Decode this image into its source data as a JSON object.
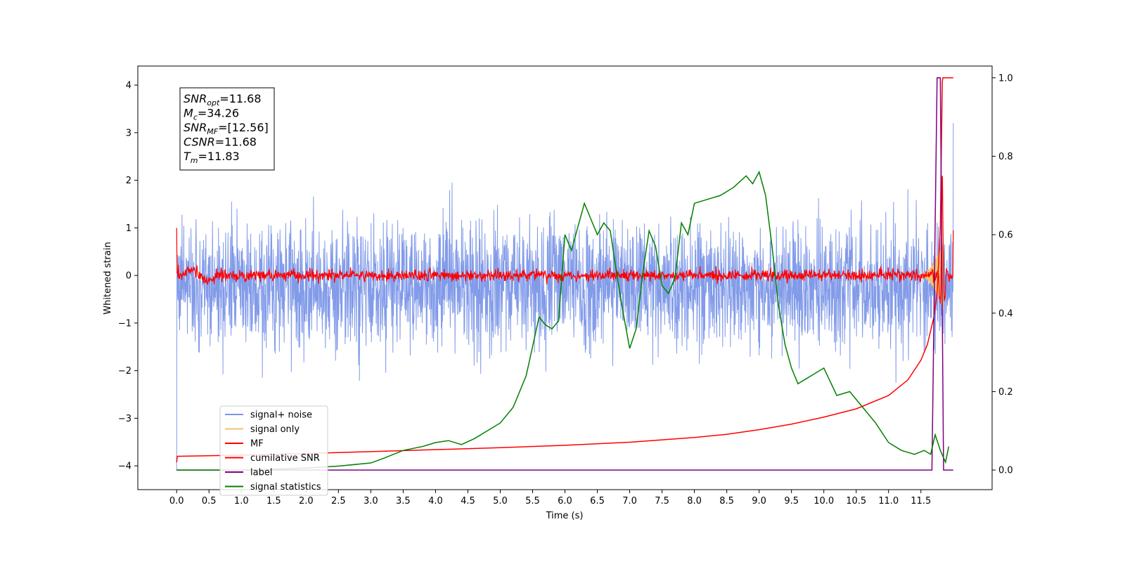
{
  "chart_data": {
    "type": "line",
    "title": "",
    "xlabel": "Time (s)",
    "ylabel": "Whitened strain",
    "xlim": [
      -0.6,
      12.6
    ],
    "ylim": [
      -4.5,
      4.4
    ],
    "y2lim": [
      -0.05,
      1.03
    ],
    "x_ticks": [
      0.0,
      0.5,
      1.0,
      1.5,
      2.0,
      2.5,
      3.0,
      3.5,
      4.0,
      4.5,
      5.0,
      5.5,
      6.0,
      6.5,
      7.0,
      7.5,
      8.0,
      8.5,
      9.0,
      9.5,
      10.0,
      10.5,
      11.0,
      11.5
    ],
    "x_tick_labels": [
      "0.0",
      "0.5",
      "1.0",
      "1.5",
      "2.0",
      "2.5",
      "3.0",
      "3.5",
      "4.0",
      "4.5",
      "5.0",
      "5.5",
      "6.0",
      "6.5",
      "7.0",
      "7.5",
      "8.0",
      "8.5",
      "9.0",
      "9.5",
      "10.0",
      "10.5",
      "11.0",
      "11.5"
    ],
    "y_ticks": [
      -4,
      -3,
      -2,
      -1,
      0,
      1,
      2,
      3,
      4
    ],
    "y_tick_labels": [
      "−4",
      "−3",
      "−2",
      "−1",
      "0",
      "1",
      "2",
      "3",
      "4"
    ],
    "y2_ticks": [
      0.0,
      0.2,
      0.4,
      0.6,
      0.8,
      1.0
    ],
    "y2_tick_labels": [
      "0.0",
      "0.2",
      "0.4",
      "0.6",
      "0.8",
      "1.0"
    ],
    "grid": false,
    "legend_position": "lower-left",
    "annotation": {
      "lines": [
        {
          "sym": "SNR",
          "sub": "opt",
          "value": "=11.68"
        },
        {
          "sym": "M",
          "sub": "c",
          "value": "=34.26"
        },
        {
          "sym": "SNR",
          "sub": "MF",
          "value": "=[12.56]"
        },
        {
          "sym": "CSNR",
          "sub": "",
          "value": "=11.68"
        },
        {
          "sym": "T",
          "sub": "m",
          "value": "=11.83"
        }
      ]
    },
    "series": [
      {
        "name": "signal+ noise",
        "axis": "left",
        "color": "#7b96e8",
        "kind": "noise",
        "x_range": [
          0.0,
          12.0
        ],
        "mean": -0.2,
        "spread": 0.75,
        "amplitude_max": 2.3,
        "end_values": [
          -4.1,
          3.2
        ]
      },
      {
        "name": "signal only",
        "axis": "left",
        "color": "#f2c46e",
        "kind": "chirp",
        "x_range": [
          11.4,
          11.85
        ],
        "envelope_peak": 0.75
      },
      {
        "name": "MF",
        "axis": "left",
        "color": "#ff0000",
        "kind": "noise",
        "x_range": [
          0.0,
          12.0
        ],
        "mean": 0.0,
        "spread": 0.1,
        "start_value": 1.0,
        "end_value": 0.95,
        "peak": {
          "x": 11.83,
          "value": 2.4
        }
      },
      {
        "name": "cumilative SNR",
        "axis": "right",
        "color": "#ff0000",
        "x": [
          0.0,
          0.01,
          1.0,
          2.0,
          3.0,
          4.0,
          5.0,
          6.0,
          7.0,
          8.0,
          8.5,
          9.0,
          9.5,
          10.0,
          10.5,
          11.0,
          11.3,
          11.5,
          11.6,
          11.7,
          11.75,
          11.8,
          11.83,
          11.84,
          11.9,
          12.0
        ],
        "values": [
          0.02,
          0.035,
          0.038,
          0.042,
          0.047,
          0.052,
          0.057,
          0.063,
          0.071,
          0.083,
          0.091,
          0.103,
          0.117,
          0.135,
          0.156,
          0.19,
          0.23,
          0.28,
          0.32,
          0.39,
          0.45,
          0.62,
          0.99,
          1.0,
          1.0,
          1.0
        ]
      },
      {
        "name": "label",
        "axis": "right",
        "color": "#800080",
        "x": [
          0.0,
          11.67,
          11.75,
          11.8,
          11.85,
          11.9,
          12.0
        ],
        "values": [
          0.0,
          0.0,
          1.0,
          1.0,
          0.0,
          0.0,
          0.0
        ]
      },
      {
        "name": "signal statistics",
        "axis": "right",
        "color": "#008000",
        "x": [
          0.0,
          0.5,
          1.0,
          1.5,
          2.0,
          2.5,
          3.0,
          3.2,
          3.5,
          3.8,
          4.0,
          4.2,
          4.4,
          4.6,
          4.8,
          5.0,
          5.2,
          5.4,
          5.6,
          5.7,
          5.8,
          5.9,
          6.0,
          6.1,
          6.2,
          6.3,
          6.4,
          6.5,
          6.6,
          6.7,
          6.8,
          6.9,
          7.0,
          7.1,
          7.2,
          7.3,
          7.4,
          7.5,
          7.6,
          7.7,
          7.8,
          7.9,
          8.0,
          8.2,
          8.4,
          8.6,
          8.8,
          8.9,
          9.0,
          9.1,
          9.2,
          9.3,
          9.4,
          9.5,
          9.6,
          9.8,
          10.0,
          10.2,
          10.4,
          10.6,
          10.8,
          11.0,
          11.2,
          11.4,
          11.55,
          11.65,
          11.72,
          11.8,
          11.88,
          11.93
        ],
        "values": [
          0.0,
          0.0,
          0.0,
          0.002,
          0.005,
          0.01,
          0.018,
          0.03,
          0.05,
          0.06,
          0.07,
          0.075,
          0.065,
          0.08,
          0.1,
          0.12,
          0.16,
          0.24,
          0.39,
          0.37,
          0.36,
          0.38,
          0.6,
          0.56,
          0.62,
          0.68,
          0.64,
          0.6,
          0.63,
          0.61,
          0.5,
          0.4,
          0.31,
          0.36,
          0.5,
          0.61,
          0.57,
          0.47,
          0.45,
          0.49,
          0.63,
          0.6,
          0.68,
          0.69,
          0.7,
          0.72,
          0.75,
          0.73,
          0.76,
          0.7,
          0.57,
          0.42,
          0.32,
          0.26,
          0.22,
          0.24,
          0.26,
          0.19,
          0.2,
          0.16,
          0.12,
          0.07,
          0.05,
          0.04,
          0.05,
          0.04,
          0.09,
          0.05,
          0.02,
          0.06
        ]
      }
    ]
  }
}
